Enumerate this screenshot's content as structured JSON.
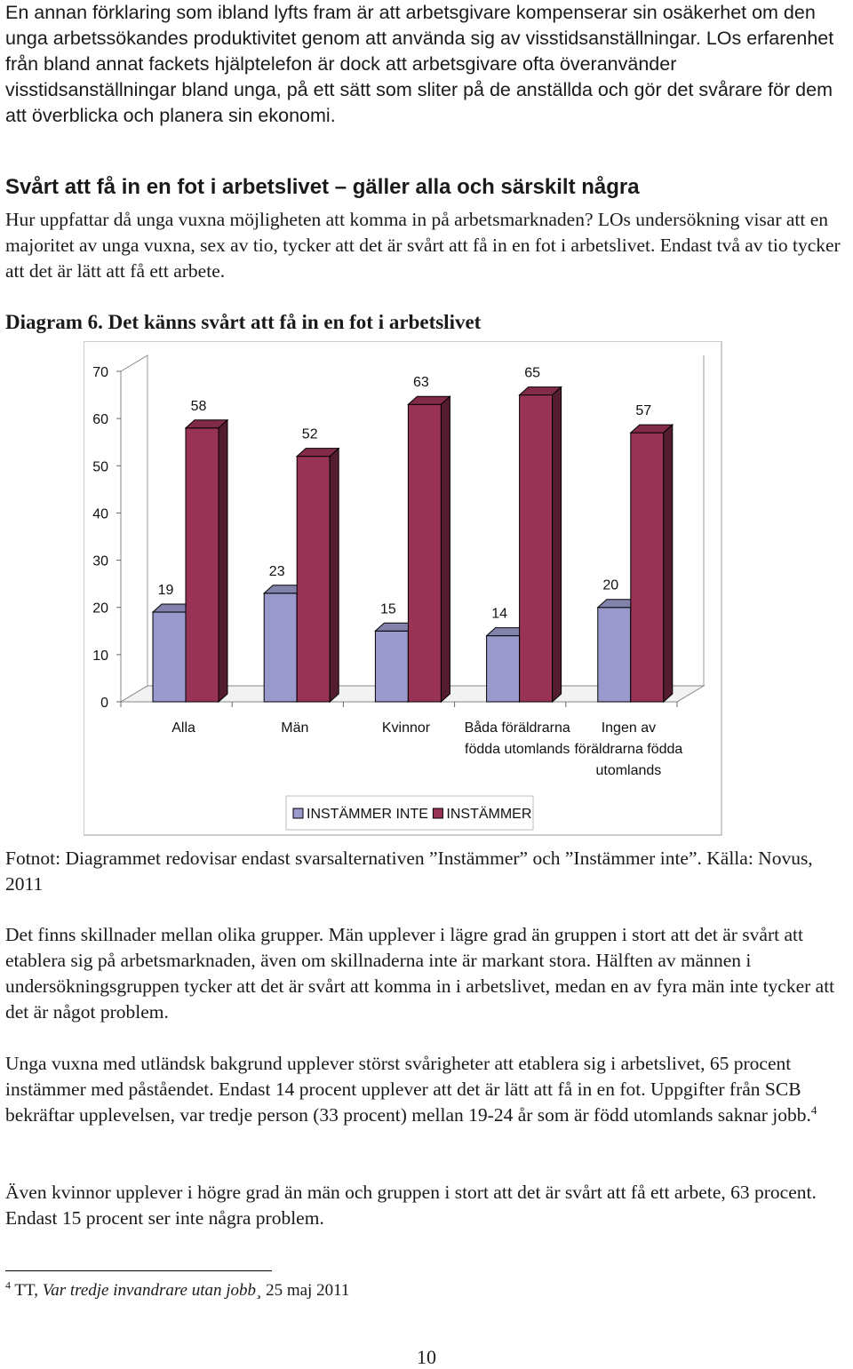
{
  "intro_text": "En annan förklaring som ibland lyfts fram är att arbetsgivare kompenserar sin osäkerhet om den unga arbetssökandes produktivitet genom att använda sig av visstidsanställningar. LOs erfarenhet från bland annat fackets hjälptelefon är dock att arbetsgivare ofta överanvänder visstidsanställningar bland unga, på ett sätt som sliter på de anställda och gör det svårare för dem att överblicka och planera sin ekonomi.",
  "section_heading": "Svårt att få in en fot i arbetslivet – gäller alla och särskilt några",
  "section_paragraph": "Hur uppfattar då unga vuxna möjligheten att komma in på arbetsmarknaden? LOs undersökning visar att en majoritet av unga vuxna, sex av tio, tycker att det är svårt att få in en fot i arbetslivet. Endast två av tio tycker att det är lätt att få ett arbete.",
  "diagram_title": "Diagram 6. Det känns svårt att få in en fot i arbetslivet",
  "chart_data": {
    "type": "bar",
    "categories": [
      [
        "Alla"
      ],
      [
        "Män"
      ],
      [
        "Kvinnor"
      ],
      [
        "Båda föräldrarna",
        "födda utomlands"
      ],
      [
        "Ingen av",
        "föräldrarna födda",
        "utomlands"
      ]
    ],
    "series": [
      {
        "name": "INSTÄMMER INTE",
        "values": [
          19,
          23,
          15,
          14,
          20
        ],
        "color": "#9999cc"
      },
      {
        "name": "INSTÄMMER",
        "values": [
          58,
          52,
          63,
          65,
          57
        ],
        "color": "#993355"
      }
    ],
    "y_ticks": [
      0,
      10,
      20,
      30,
      40,
      50,
      60,
      70
    ],
    "ylim": [
      0,
      70
    ],
    "legend_position": "bottom",
    "style": "3d-clustered-column"
  },
  "footnote_text": "Fotnot: Diagrammet redovisar endast svarsalternativen ”Instämmer” och ”Instämmer inte”. Källa: Novus, 2011",
  "para1": "Det finns skillnader mellan olika grupper. Män upplever i lägre grad än gruppen i stort att det är svårt att etablera sig på arbetsmarknaden, även om skillnaderna inte är markant stora. Hälften av männen i undersökningsgruppen tycker att det är svårt att komma in i arbetslivet, medan en av fyra män inte tycker att det är något problem.",
  "para2": "Unga vuxna med utländsk bakgrund upplever störst svårigheter att etablera sig i arbetslivet, 65 procent instämmer med påståendet. Endast 14 procent upplever att det är lätt att få in en fot. Uppgifter från SCB bekräftar upplevelsen, var tredje person (33 procent) mellan 19-24 år som är född utomlands saknar jobb.",
  "para2_footnote_ref": "4",
  "para3": "Även kvinnor upplever i högre grad än män och gruppen i stort att det är svårt att få ett arbete, 63 procent. Endast 15 procent ser inte några problem.",
  "footnote": {
    "number": "4",
    "prefix": " TT, ",
    "title": "Var tredje invandrare utan jobb¸",
    "suffix": " 25 maj 2011"
  },
  "page_number": "10"
}
